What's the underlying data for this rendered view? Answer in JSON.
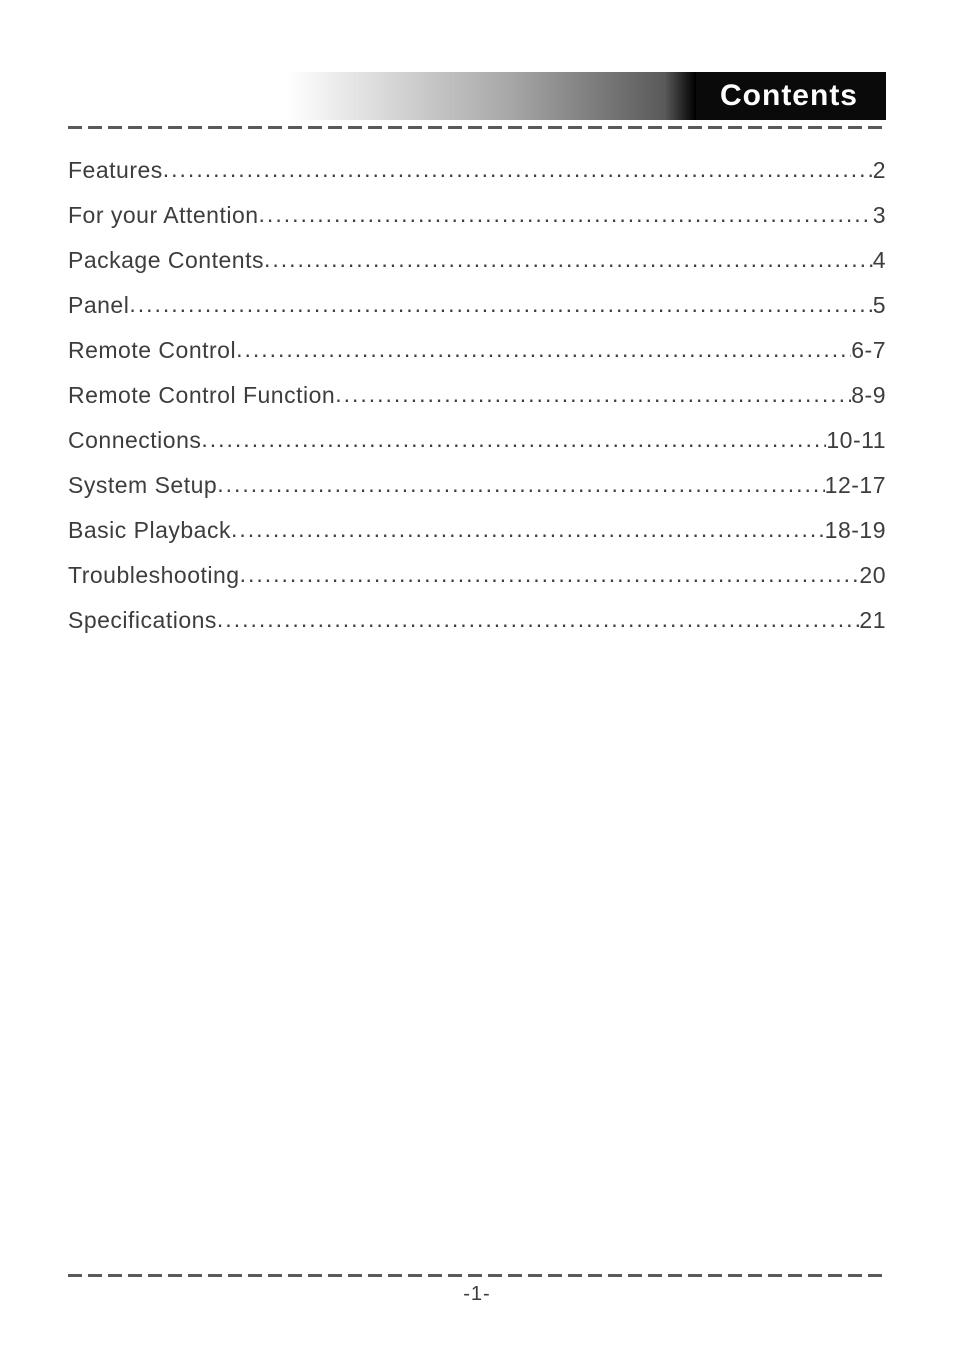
{
  "header": {
    "title": "Contents"
  },
  "toc": {
    "items": [
      {
        "title": "Features",
        "page": "2"
      },
      {
        "title": "For your Attention",
        "page": "3"
      },
      {
        "title": "Package Contents",
        "page": "4"
      },
      {
        "title": "Panel",
        "page": "5"
      },
      {
        "title": "Remote Control",
        "page": "6-7"
      },
      {
        "title": "Remote Control Function",
        "page": "8-9"
      },
      {
        "title": "Connections",
        "page": "10-11"
      },
      {
        "title": "System  Setup",
        "page": "12-17"
      },
      {
        "title": "Basic Playback",
        "page": "18-19"
      },
      {
        "title": "Troubleshooting",
        "page": "20"
      },
      {
        "title": "Specifications",
        "page": "21"
      }
    ]
  },
  "footer": {
    "page_number": "-1-"
  },
  "style": {
    "header_bg": "#0a0a0a",
    "header_text_color": "#ffffff",
    "header_fontsize": 30,
    "body_text_color": "#3d3d3d",
    "toc_fontsize": 23,
    "dash_color": "#5a5a5a",
    "background": "#ffffff",
    "gradient_start": "#ffffff",
    "gradient_end": "#000000"
  }
}
